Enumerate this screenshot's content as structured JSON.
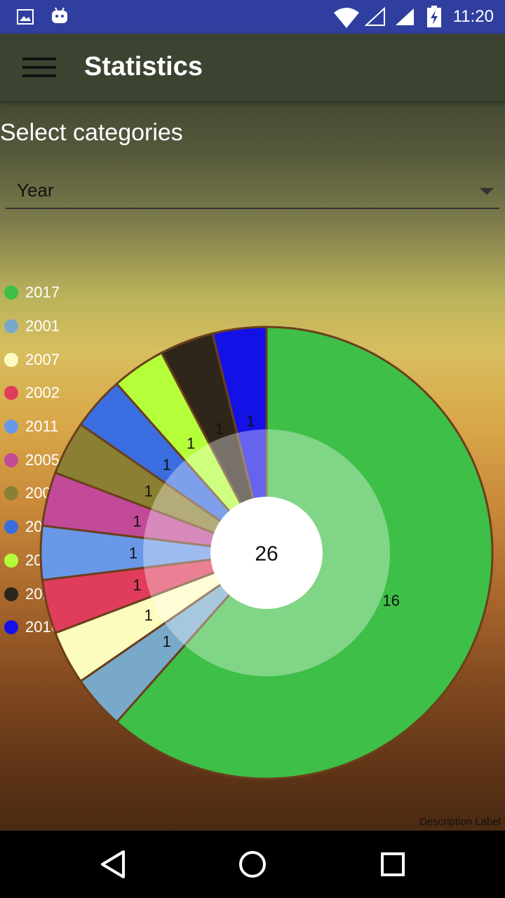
{
  "status_bar": {
    "time": "11:20"
  },
  "app_bar": {
    "title": "Statistics"
  },
  "filter": {
    "label": "Select categories",
    "selected": "Year"
  },
  "chart_data": {
    "type": "pie",
    "center_total": "26",
    "description": "Description Label",
    "slices": [
      {
        "label": "2017",
        "value": 16,
        "color": "#3dbf48"
      },
      {
        "label": "2001",
        "value": 1,
        "color": "#79a9c9"
      },
      {
        "label": "2007",
        "value": 1,
        "color": "#fdfcbf"
      },
      {
        "label": "2002",
        "value": 1,
        "color": "#e03c5c"
      },
      {
        "label": "2011",
        "value": 1,
        "color": "#6a98e8"
      },
      {
        "label": "2005",
        "value": 1,
        "color": "#c24a99"
      },
      {
        "label": "2004",
        "value": 1,
        "color": "#8a7f32"
      },
      {
        "label": "2009",
        "value": 1,
        "color": "#3a6ee0"
      },
      {
        "label": "2010",
        "value": 1,
        "color": "#b5ff3a"
      },
      {
        "label": "2015",
        "value": 1,
        "color": "#2e261b"
      },
      {
        "label": "2016",
        "value": 1,
        "color": "#1411e6"
      }
    ],
    "draw_order": [
      "2017",
      "2001",
      "2007",
      "2002",
      "2011",
      "2005",
      "2004",
      "2009",
      "2010",
      "2015",
      "2016"
    ]
  }
}
